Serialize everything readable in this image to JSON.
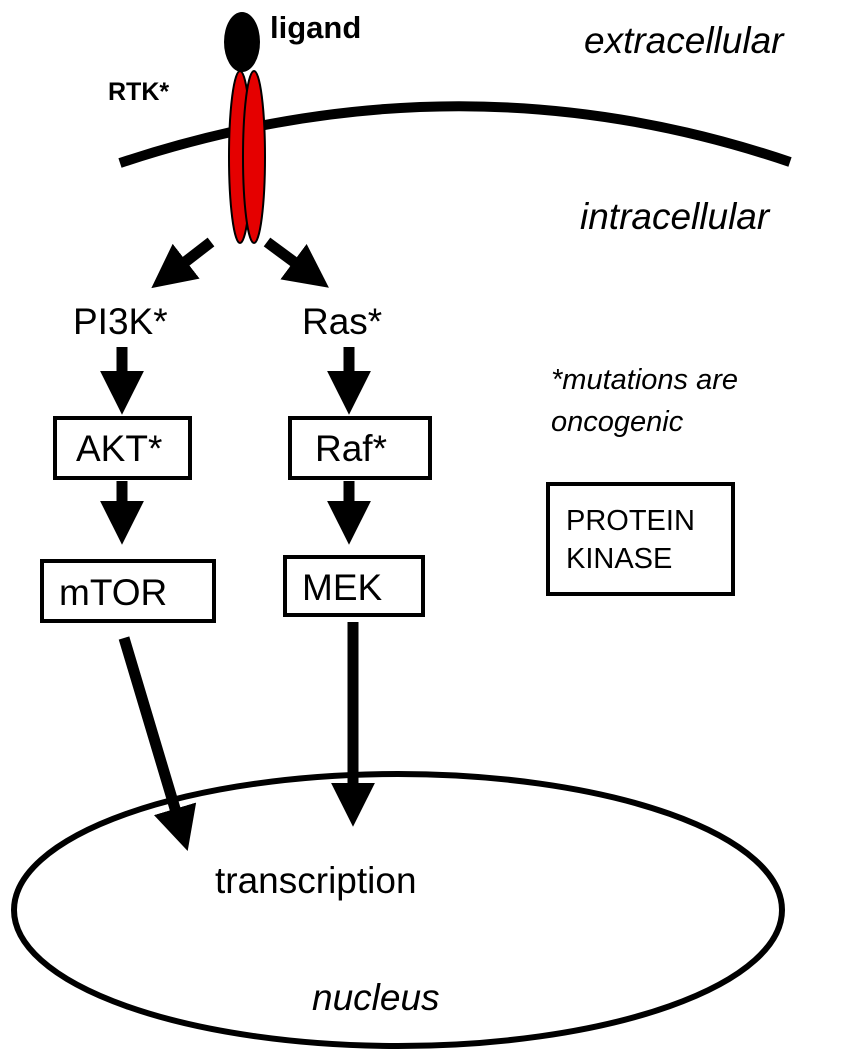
{
  "diagram": {
    "labels": {
      "ligand": "ligand",
      "rtk": "RTK*",
      "extracellular": "extracellular",
      "intracellular": "intracellular",
      "pi3k": "PI3K*",
      "ras": "Ras*",
      "akt": "AKT*",
      "raf": "Raf*",
      "mtor": "mTOR",
      "mek": "MEK",
      "transcription": "transcription",
      "nucleus": "nucleus"
    },
    "legend": {
      "footnote_line1": "*mutations are",
      "footnote_line2": "oncogenic",
      "kinase_line1": "PROTEIN",
      "kinase_line2": "KINASE"
    },
    "colors": {
      "receptor": "#e50000",
      "ligand": "#000000",
      "line": "#000000"
    }
  }
}
